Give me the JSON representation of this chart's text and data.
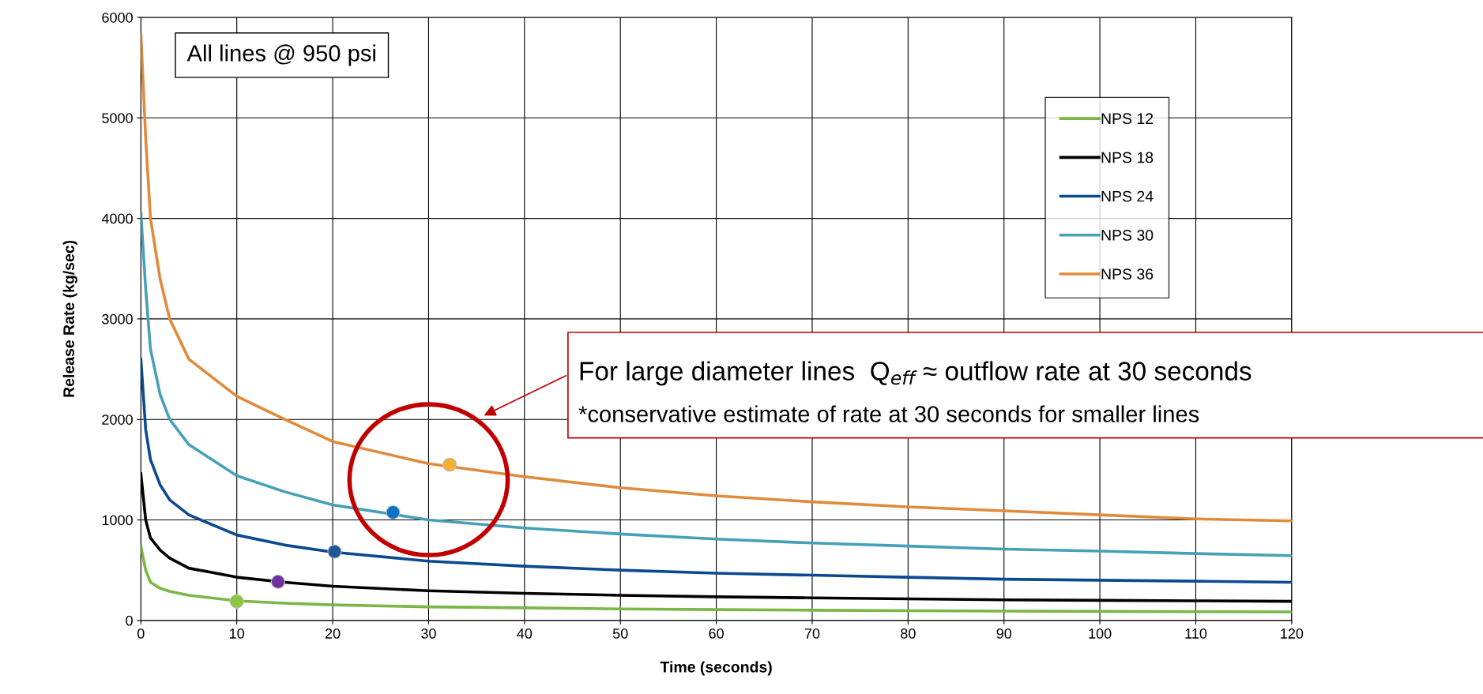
{
  "chart_data": {
    "type": "line",
    "xlabel": "Time (seconds)",
    "ylabel": "Release Rate (kg/sec)",
    "xlim": [
      0,
      120
    ],
    "xticks": [
      0,
      10,
      20,
      30,
      40,
      50,
      60,
      70,
      80,
      90,
      100,
      110,
      120
    ],
    "ylim": [
      0,
      6000
    ],
    "yticks": [
      0,
      1000,
      2000,
      3000,
      4000,
      5000,
      6000
    ],
    "grid": true,
    "legend": "top right",
    "marker": "none",
    "line_style": "solid",
    "x": [
      0,
      0.5,
      1,
      2,
      3,
      5,
      10,
      15,
      20,
      30,
      40,
      50,
      60,
      70,
      80,
      90,
      100,
      110,
      120
    ],
    "series": [
      {
        "name": "NPS 12",
        "color": "#7ab648",
        "values": [
          740,
          500,
          380,
          320,
          290,
          250,
          195,
          172,
          155,
          135,
          125,
          115,
          108,
          102,
          97,
          93,
          90,
          87,
          85
        ]
      },
      {
        "name": "NPS 18",
        "color": "#000000",
        "values": [
          1460,
          1000,
          820,
          700,
          620,
          520,
          430,
          380,
          340,
          295,
          270,
          250,
          235,
          225,
          215,
          205,
          200,
          195,
          190
        ]
      },
      {
        "name": "NPS 24",
        "color": "#0b4a8f",
        "values": [
          2600,
          1900,
          1600,
          1350,
          1200,
          1050,
          850,
          750,
          680,
          590,
          540,
          500,
          470,
          450,
          430,
          410,
          400,
          390,
          380
        ]
      },
      {
        "name": "NPS 30",
        "color": "#45a0b8",
        "values": [
          4050,
          3300,
          2700,
          2250,
          2000,
          1750,
          1440,
          1280,
          1150,
          1000,
          920,
          860,
          810,
          770,
          740,
          710,
          690,
          665,
          645
        ]
      },
      {
        "name": "NPS 36",
        "color": "#e08a3c",
        "values": [
          5830,
          4800,
          4000,
          3400,
          3000,
          2600,
          2230,
          2000,
          1780,
          1560,
          1430,
          1320,
          1240,
          1180,
          1130,
          1090,
          1050,
          1010,
          990
        ]
      },
      {
        "type": "scatter",
        "marker": "circle",
        "color": "#8cc63f",
        "x": [
          10
        ],
        "values": [
          190
        ]
      },
      {
        "type": "scatter",
        "marker": "circle",
        "color": "#7030a0",
        "x": [
          14.3
        ],
        "values": [
          385
        ]
      },
      {
        "type": "scatter",
        "marker": "circle",
        "color": "#1f5796",
        "x": [
          20.2
        ],
        "values": [
          685
        ]
      },
      {
        "type": "scatter",
        "marker": "circle",
        "color": "#0a72c6",
        "x": [
          26.3
        ],
        "values": [
          1075
        ]
      },
      {
        "type": "scatter",
        "marker": "circle",
        "color": "#f2b134",
        "x": [
          32.2
        ],
        "values": [
          1550
        ]
      }
    ],
    "annotations": [
      "All lines @ 950 psi",
      "For large diameter lines  Q$_{eff}$ ≈ outflow rate at 30 seconds",
      "*conservative estimate of rate at 30 seconds for smaller lines"
    ]
  }
}
